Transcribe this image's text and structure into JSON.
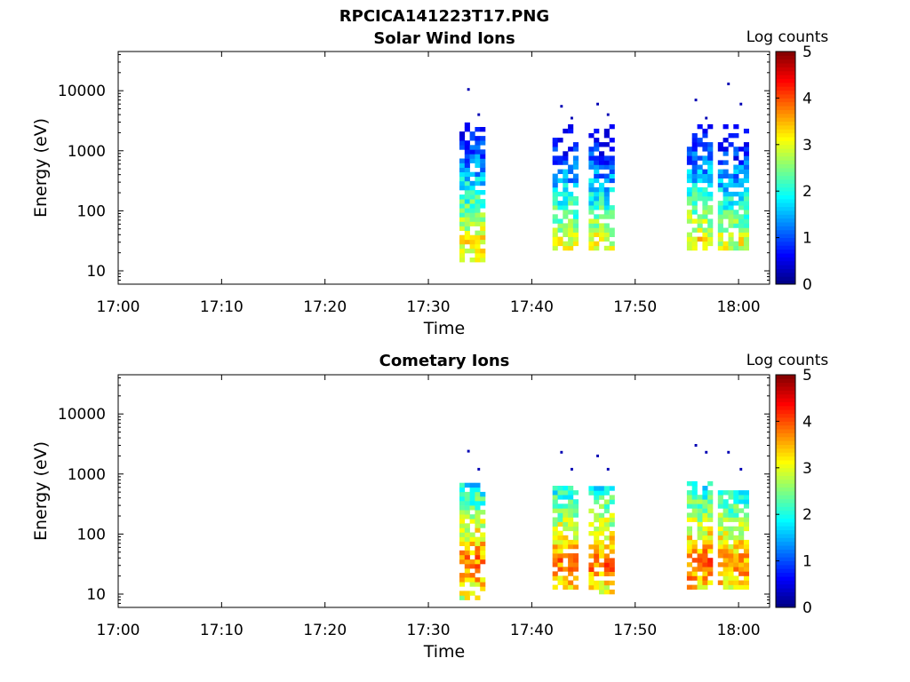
{
  "figure_title": "RPCICA141223T17.PNG",
  "chart_data": [
    {
      "type": "heatmap",
      "title": "Solar Wind Ions",
      "xlabel": "Time",
      "ylabel": "Energy (eV)",
      "x_ticks": [
        "17:00",
        "17:10",
        "17:20",
        "17:30",
        "17:40",
        "17:50",
        "18:00"
      ],
      "xlim": [
        "17:00",
        "18:03"
      ],
      "y_scale": "log",
      "y_ticks": [
        "10",
        "100",
        "1000",
        "10000"
      ],
      "ylim": [
        6,
        45000
      ],
      "colorbar": {
        "label": "Log counts",
        "ticks": [
          "0",
          "1",
          "2",
          "3",
          "4",
          "5"
        ],
        "range": [
          0,
          5
        ],
        "colormap": "jet"
      },
      "bursts": [
        {
          "start": "17:33",
          "end": "17:35:30",
          "e_low": 14,
          "e_high": 2500,
          "peak_energy": 28,
          "peak_log_counts": 3.2,
          "sparse_high": [
            10500,
            4000
          ]
        },
        {
          "start": "17:42",
          "end": "17:44:30",
          "e_low": 22,
          "e_high": 2500,
          "peak_energy": 28,
          "peak_log_counts": 3.0,
          "sparse_high": [
            5500,
            3500
          ]
        },
        {
          "start": "17:45:30",
          "end": "17:48",
          "e_low": 22,
          "e_high": 2500,
          "peak_energy": 28,
          "peak_log_counts": 3.0,
          "sparse_high": [
            6000,
            4000
          ]
        },
        {
          "start": "17:55",
          "end": "17:57:30",
          "e_low": 22,
          "e_high": 2500,
          "peak_energy": 28,
          "peak_log_counts": 3.2,
          "sparse_high": [
            7000,
            3500
          ]
        },
        {
          "start": "17:58",
          "end": "18:01",
          "e_low": 22,
          "e_high": 2500,
          "peak_energy": 28,
          "peak_log_counts": 3.0,
          "sparse_high": [
            13000,
            6000
          ]
        }
      ]
    },
    {
      "type": "heatmap",
      "title": "Cometary Ions",
      "xlabel": "Time",
      "ylabel": "Energy (eV)",
      "x_ticks": [
        "17:00",
        "17:10",
        "17:20",
        "17:30",
        "17:40",
        "17:50",
        "18:00"
      ],
      "xlim": [
        "17:00",
        "18:03"
      ],
      "y_scale": "log",
      "y_ticks": [
        "10",
        "100",
        "1000",
        "10000"
      ],
      "ylim": [
        6,
        45000
      ],
      "colorbar": {
        "label": "Log counts",
        "ticks": [
          "0",
          "1",
          "2",
          "3",
          "4",
          "5"
        ],
        "range": [
          0,
          5
        ],
        "colormap": "jet"
      },
      "bursts": [
        {
          "start": "17:33",
          "end": "17:35:30",
          "e_low": 8,
          "e_high": 600,
          "peak_energy": 30,
          "peak_log_counts": 3.8,
          "sparse_high": [
            2400,
            1200
          ]
        },
        {
          "start": "17:42",
          "end": "17:44:30",
          "e_low": 12,
          "e_high": 600,
          "peak_energy": 30,
          "peak_log_counts": 3.8,
          "sparse_high": [
            2300,
            1200
          ]
        },
        {
          "start": "17:45:30",
          "end": "17:48",
          "e_low": 10,
          "e_high": 600,
          "peak_energy": 30,
          "peak_log_counts": 3.8,
          "sparse_high": [
            2000,
            1200
          ]
        },
        {
          "start": "17:55",
          "end": "17:57:30",
          "e_low": 12,
          "e_high": 650,
          "peak_energy": 28,
          "peak_log_counts": 3.9,
          "sparse_high": [
            3000,
            2300
          ]
        },
        {
          "start": "17:58",
          "end": "18:01",
          "e_low": 12,
          "e_high": 500,
          "peak_energy": 28,
          "peak_log_counts": 3.7,
          "sparse_high": [
            2300,
            1200
          ]
        }
      ]
    }
  ]
}
